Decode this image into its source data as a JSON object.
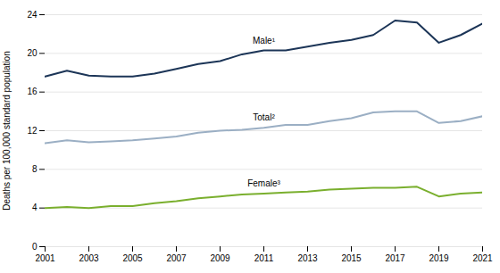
{
  "chart_data": {
    "type": "line",
    "x": [
      2001,
      2002,
      2003,
      2004,
      2005,
      2006,
      2007,
      2008,
      2009,
      2010,
      2011,
      2012,
      2013,
      2014,
      2015,
      2016,
      2017,
      2018,
      2019,
      2020,
      2021
    ],
    "series": [
      {
        "name": "Male¹",
        "color": "#1c3557",
        "values": [
          17.6,
          18.2,
          17.7,
          17.6,
          17.6,
          17.9,
          18.4,
          18.9,
          19.2,
          19.9,
          20.3,
          20.3,
          20.7,
          21.1,
          21.4,
          21.9,
          23.4,
          23.2,
          21.1,
          21.9,
          23.1
        ]
      },
      {
        "name": "Total²",
        "color": "#9BAFC4",
        "values": [
          10.7,
          11.0,
          10.8,
          10.9,
          11.0,
          11.2,
          11.4,
          11.8,
          12.0,
          12.1,
          12.3,
          12.6,
          12.6,
          13.0,
          13.3,
          13.9,
          14.0,
          14.0,
          12.8,
          13.0,
          13.5
        ]
      },
      {
        "name": "Female³",
        "color": "#7aaf2e",
        "values": [
          4.0,
          4.1,
          4.0,
          4.2,
          4.2,
          4.5,
          4.7,
          5.0,
          5.2,
          5.4,
          5.5,
          5.6,
          5.7,
          5.9,
          6.0,
          6.1,
          6.1,
          6.2,
          5.2,
          5.5,
          5.6
        ]
      }
    ],
    "y_label": "Deaths per 100,000 standard population",
    "xlim": [
      2001,
      2021
    ],
    "xticks": [
      2001,
      2003,
      2005,
      2007,
      2009,
      2011,
      2013,
      2015,
      2017,
      2019,
      2021
    ],
    "ylim": [
      0,
      24
    ],
    "yticks": [
      0,
      4,
      8,
      12,
      16,
      20,
      24
    ],
    "grid": true
  }
}
